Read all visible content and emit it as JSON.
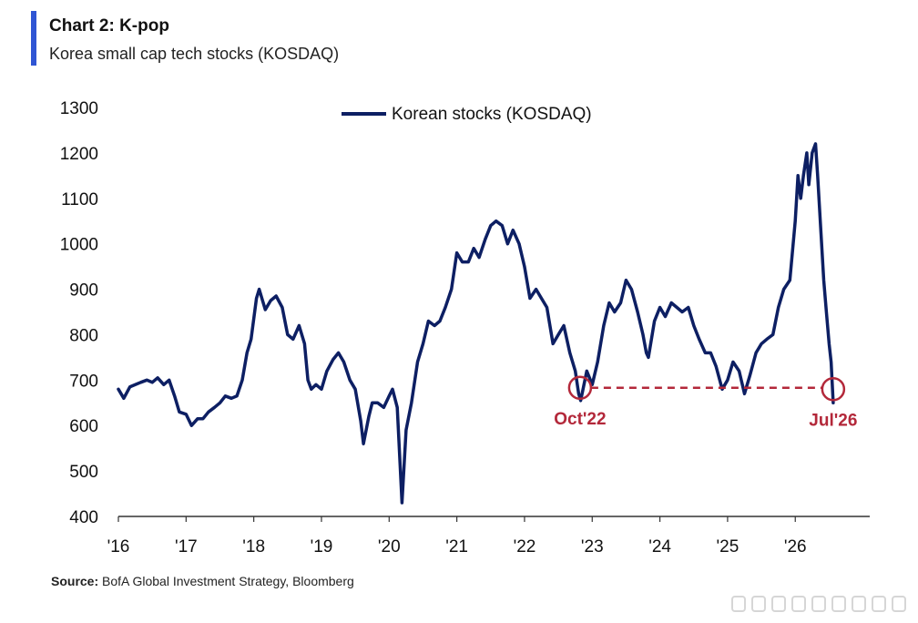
{
  "header": {
    "title": "Chart 2: K-pop",
    "subtitle": "Korea small cap tech stocks (KOSDAQ)"
  },
  "footer": {
    "source_label": "Source:",
    "source_text": " BofA Global Investment Strategy, Bloomberg"
  },
  "colors": {
    "series": "#0d1f63",
    "annotation": "#b3283a",
    "accent_bar": "#2f55d4"
  },
  "chart_data": {
    "type": "line",
    "title": "Chart 2: K-pop",
    "subtitle": "Korea small cap tech stocks (KOSDAQ)",
    "xlabel": "",
    "ylabel": "",
    "ylim": [
      400,
      1300
    ],
    "yticks": [
      400,
      500,
      600,
      700,
      800,
      900,
      1000,
      1100,
      1200,
      1300
    ],
    "xlim": [
      2016.0,
      2027.1
    ],
    "xticks": [
      {
        "x": 2016,
        "label": "'16"
      },
      {
        "x": 2017,
        "label": "'17"
      },
      {
        "x": 2018,
        "label": "'18"
      },
      {
        "x": 2019,
        "label": "'19"
      },
      {
        "x": 2020,
        "label": "'20"
      },
      {
        "x": 2021,
        "label": "'21"
      },
      {
        "x": 2022,
        "label": "'22"
      },
      {
        "x": 2023,
        "label": "'23"
      },
      {
        "x": 2024,
        "label": "'24"
      },
      {
        "x": 2025,
        "label": "'25"
      },
      {
        "x": 2026,
        "label": "'26"
      }
    ],
    "grid": false,
    "legend": {
      "position": "top-center",
      "entries": [
        "Korean stocks (KOSDAQ)"
      ]
    },
    "series": [
      {
        "name": "Korean stocks (KOSDAQ)",
        "points": [
          [
            2016.0,
            680
          ],
          [
            2016.08,
            660
          ],
          [
            2016.17,
            685
          ],
          [
            2016.25,
            690
          ],
          [
            2016.33,
            695
          ],
          [
            2016.42,
            700
          ],
          [
            2016.5,
            695
          ],
          [
            2016.58,
            705
          ],
          [
            2016.67,
            690
          ],
          [
            2016.75,
            700
          ],
          [
            2016.83,
            665
          ],
          [
            2016.9,
            630
          ],
          [
            2017.0,
            625
          ],
          [
            2017.08,
            600
          ],
          [
            2017.17,
            615
          ],
          [
            2017.25,
            615
          ],
          [
            2017.33,
            630
          ],
          [
            2017.42,
            640
          ],
          [
            2017.5,
            650
          ],
          [
            2017.58,
            665
          ],
          [
            2017.67,
            660
          ],
          [
            2017.75,
            665
          ],
          [
            2017.83,
            700
          ],
          [
            2017.9,
            760
          ],
          [
            2017.96,
            790
          ],
          [
            2018.04,
            880
          ],
          [
            2018.08,
            900
          ],
          [
            2018.17,
            855
          ],
          [
            2018.25,
            875
          ],
          [
            2018.33,
            885
          ],
          [
            2018.42,
            860
          ],
          [
            2018.5,
            800
          ],
          [
            2018.58,
            790
          ],
          [
            2018.67,
            820
          ],
          [
            2018.75,
            780
          ],
          [
            2018.8,
            700
          ],
          [
            2018.85,
            680
          ],
          [
            2018.92,
            690
          ],
          [
            2019.0,
            680
          ],
          [
            2019.08,
            720
          ],
          [
            2019.17,
            745
          ],
          [
            2019.25,
            760
          ],
          [
            2019.33,
            740
          ],
          [
            2019.42,
            700
          ],
          [
            2019.5,
            680
          ],
          [
            2019.58,
            610
          ],
          [
            2019.62,
            560
          ],
          [
            2019.7,
            620
          ],
          [
            2019.75,
            650
          ],
          [
            2019.83,
            650
          ],
          [
            2019.92,
            640
          ],
          [
            2020.0,
            665
          ],
          [
            2020.05,
            680
          ],
          [
            2020.12,
            640
          ],
          [
            2020.19,
            430
          ],
          [
            2020.25,
            590
          ],
          [
            2020.33,
            650
          ],
          [
            2020.42,
            740
          ],
          [
            2020.5,
            780
          ],
          [
            2020.58,
            830
          ],
          [
            2020.67,
            820
          ],
          [
            2020.75,
            830
          ],
          [
            2020.83,
            860
          ],
          [
            2020.92,
            900
          ],
          [
            2021.0,
            980
          ],
          [
            2021.08,
            960
          ],
          [
            2021.17,
            960
          ],
          [
            2021.25,
            990
          ],
          [
            2021.33,
            970
          ],
          [
            2021.42,
            1010
          ],
          [
            2021.5,
            1040
          ],
          [
            2021.58,
            1050
          ],
          [
            2021.67,
            1040
          ],
          [
            2021.75,
            1000
          ],
          [
            2021.83,
            1030
          ],
          [
            2021.92,
            1000
          ],
          [
            2022.0,
            950
          ],
          [
            2022.08,
            880
          ],
          [
            2022.17,
            900
          ],
          [
            2022.25,
            880
          ],
          [
            2022.33,
            860
          ],
          [
            2022.42,
            780
          ],
          [
            2022.5,
            800
          ],
          [
            2022.58,
            820
          ],
          [
            2022.67,
            760
          ],
          [
            2022.75,
            720
          ],
          [
            2022.8,
            670
          ],
          [
            2022.83,
            655
          ],
          [
            2022.92,
            720
          ],
          [
            2023.0,
            690
          ],
          [
            2023.08,
            740
          ],
          [
            2023.17,
            820
          ],
          [
            2023.25,
            870
          ],
          [
            2023.33,
            850
          ],
          [
            2023.42,
            870
          ],
          [
            2023.5,
            920
          ],
          [
            2023.58,
            900
          ],
          [
            2023.67,
            850
          ],
          [
            2023.75,
            800
          ],
          [
            2023.8,
            760
          ],
          [
            2023.83,
            750
          ],
          [
            2023.92,
            830
          ],
          [
            2024.0,
            860
          ],
          [
            2024.08,
            840
          ],
          [
            2024.17,
            870
          ],
          [
            2024.25,
            860
          ],
          [
            2024.33,
            850
          ],
          [
            2024.42,
            860
          ],
          [
            2024.5,
            820
          ],
          [
            2024.58,
            790
          ],
          [
            2024.67,
            760
          ],
          [
            2024.75,
            760
          ],
          [
            2024.83,
            730
          ],
          [
            2024.92,
            680
          ],
          [
            2025.0,
            700
          ],
          [
            2025.08,
            740
          ],
          [
            2025.17,
            720
          ],
          [
            2025.25,
            670
          ],
          [
            2025.33,
            710
          ],
          [
            2025.42,
            760
          ],
          [
            2025.5,
            780
          ],
          [
            2025.58,
            790
          ],
          [
            2025.67,
            800
          ],
          [
            2025.75,
            860
          ],
          [
            2025.83,
            900
          ],
          [
            2025.92,
            920
          ],
          [
            2026.0,
            1050
          ],
          [
            2026.04,
            1150
          ],
          [
            2026.08,
            1100
          ],
          [
            2026.12,
            1150
          ],
          [
            2026.17,
            1200
          ],
          [
            2026.2,
            1130
          ],
          [
            2026.25,
            1200
          ],
          [
            2026.3,
            1220
          ],
          [
            2026.33,
            1150
          ],
          [
            2026.37,
            1050
          ],
          [
            2026.42,
            920
          ],
          [
            2026.46,
            850
          ],
          [
            2026.5,
            780
          ],
          [
            2026.53,
            740
          ],
          [
            2026.56,
            650
          ]
        ]
      }
    ],
    "annotations": [
      {
        "type": "marker",
        "x": 2022.82,
        "y": 655,
        "label": "Oct'22"
      },
      {
        "type": "marker",
        "x": 2026.56,
        "y": 652,
        "label": "Jul'26"
      },
      {
        "type": "dashed-line",
        "from": [
          2022.82,
          655
        ],
        "to": [
          2026.56,
          655
        ]
      }
    ]
  }
}
